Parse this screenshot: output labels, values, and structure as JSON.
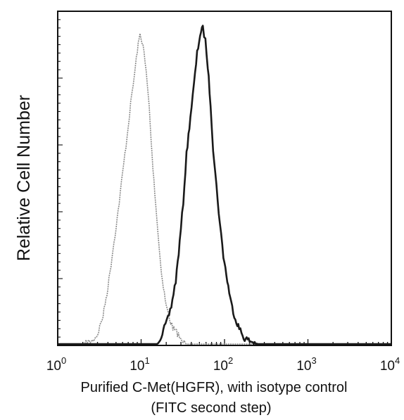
{
  "chart_data": {
    "type": "line",
    "title": "",
    "xlabel": "Purified C-Met(HGFR), with isotype control",
    "xlabel_line2": "(FITC second step)",
    "ylabel": "Relative Cell Number",
    "x_scale": "log",
    "xlim": [
      1,
      10000
    ],
    "ylim": [
      0,
      100
    ],
    "grid": false,
    "legend": "none",
    "x_ticks": [
      {
        "base": "10",
        "exp": "0",
        "value": 1
      },
      {
        "base": "10",
        "exp": "1",
        "value": 10
      },
      {
        "base": "10",
        "exp": "2",
        "value": 100
      },
      {
        "base": "10",
        "exp": "3",
        "value": 1000
      },
      {
        "base": "10",
        "exp": "4",
        "value": 10000
      }
    ],
    "series": [
      {
        "role": "isotype control",
        "color": "#8a8a8a",
        "x": [
          1,
          2,
          2.6,
          3,
          3.5,
          4,
          4.6,
          5.3,
          6,
          6.8,
          7.5,
          8.3,
          9,
          9.7,
          10.5,
          11.5,
          12.5,
          13.5,
          15,
          16.5,
          18,
          20,
          22,
          24,
          26,
          28,
          30,
          35,
          50,
          10000
        ],
        "y": [
          0,
          0,
          1,
          3,
          9,
          18,
          30,
          42,
          54,
          66,
          76,
          85,
          93,
          98,
          95,
          86,
          75,
          60,
          44,
          30,
          20,
          12,
          8,
          5,
          4,
          3,
          1,
          0,
          0,
          0
        ]
      },
      {
        "role": "C-Met (HGFR)",
        "color": "#1a1a1a",
        "x": [
          1,
          15,
          17,
          19,
          21,
          23,
          26,
          29,
          32,
          35,
          39,
          43,
          47,
          51,
          55,
          59,
          63,
          68,
          73,
          80,
          88,
          97,
          108,
          120,
          135,
          150,
          170,
          200,
          250,
          10000
        ],
        "y": [
          0,
          0,
          2,
          5,
          8,
          12,
          20,
          32,
          45,
          60,
          72,
          82,
          92,
          98,
          100,
          96,
          88,
          76,
          62,
          50,
          38,
          28,
          20,
          13,
          8,
          5,
          2,
          1,
          0,
          0
        ]
      }
    ]
  }
}
